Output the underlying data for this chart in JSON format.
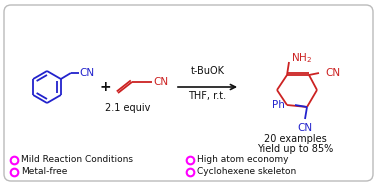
{
  "background_color": "#ffffff",
  "border_color": "#bbbbbb",
  "bullet_color": "#ff00ff",
  "bullet_items_left": [
    "Mild Reaction Conditions",
    "Metal-free"
  ],
  "bullet_items_right": [
    "High atom economy",
    "Cyclohexene skeleton"
  ],
  "reagent_line1": "t-BuOK",
  "reagent_line2": "THF, r.t.",
  "equiv_text": "2.1 equiv",
  "result_text1": "20 examples",
  "result_text2": "Yield up to 85%",
  "blue_color": "#2222cc",
  "red_color": "#cc2222",
  "black_color": "#111111",
  "text_color": "#222222"
}
